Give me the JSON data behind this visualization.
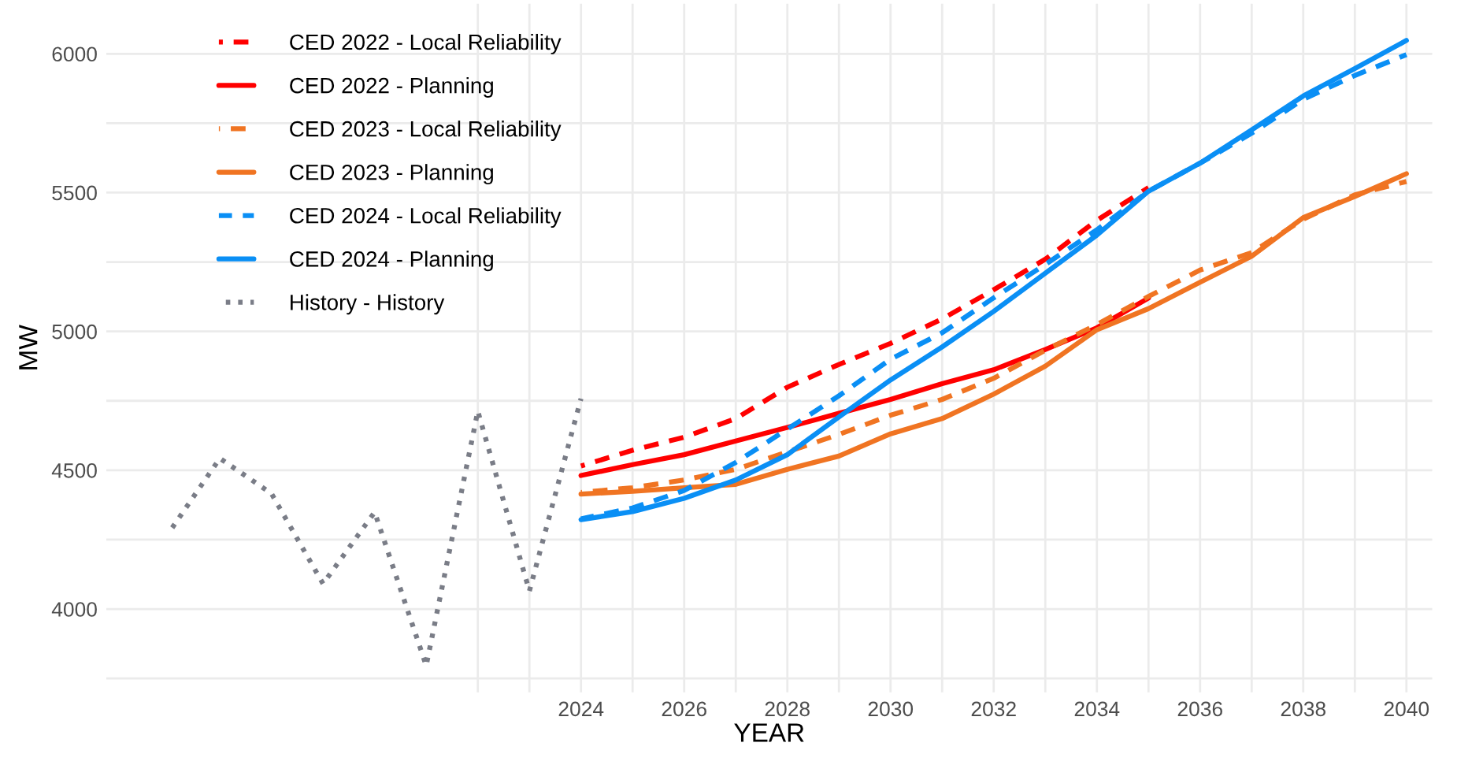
{
  "chart_data": {
    "type": "line",
    "xlabel": "YEAR",
    "ylabel": "MW",
    "xlim": [
      2014.8,
      2040.5
    ],
    "ylim": [
      3700,
      6180
    ],
    "xticks": [
      {
        "value": 2022,
        "label": null
      },
      {
        "value": 2023,
        "label": null
      },
      2024,
      {
        "value": 2025,
        "label": null
      },
      2026,
      {
        "value": 2027,
        "label": null
      },
      2028,
      {
        "value": 2029,
        "label": null
      },
      2030,
      {
        "value": 2031,
        "label": null
      },
      2032,
      {
        "value": 2033,
        "label": null
      },
      2034,
      {
        "value": 2035,
        "label": null
      },
      2036,
      {
        "value": 2037,
        "label": null
      },
      2038,
      {
        "value": 2039,
        "label": null
      },
      2040
    ],
    "yticks": [
      {
        "value": 3750,
        "label": null
      },
      4000,
      {
        "value": 4250,
        "label": null
      },
      4500,
      {
        "value": 4750,
        "label": null
      },
      5000,
      {
        "value": 5250,
        "label": null
      },
      5500,
      {
        "value": 5750,
        "label": null
      },
      6000
    ],
    "grid": true,
    "legend": "top left",
    "series": [
      {
        "name": "CED 2022 - Local Reliability",
        "color": "#ff0000",
        "line_style": "dashed",
        "x": [
          2024,
          2025,
          2026,
          2027,
          2028,
          2029,
          2030,
          2031,
          2032,
          2033,
          2034,
          2035
        ],
        "values": [
          4515,
          4572,
          4619,
          4686,
          4799,
          4881,
          4957,
          5045,
          5150,
          5260,
          5400,
          5518
        ]
      },
      {
        "name": "CED 2022 - Planning",
        "color": "#ff0000",
        "line_style": "solid",
        "x": [
          2024,
          2025,
          2026,
          2027,
          2028,
          2029,
          2030,
          2031,
          2032,
          2033,
          2034,
          2035
        ],
        "values": [
          4481,
          4520,
          4556,
          4605,
          4654,
          4705,
          4755,
          4812,
          4862,
          4935,
          5013,
          5120
        ]
      },
      {
        "name": "CED 2023 - Local Reliability",
        "color": "#f07422",
        "line_style": "dashed",
        "x": [
          2024,
          2025,
          2026,
          2027,
          2028,
          2029,
          2030,
          2031,
          2032,
          2033,
          2034,
          2035,
          2036,
          2037,
          2038,
          2039,
          2040
        ],
        "values": [
          4420,
          4437,
          4465,
          4503,
          4566,
          4629,
          4698,
          4755,
          4831,
          4932,
          5025,
          5126,
          5221,
          5284,
          5404,
          5492,
          5540
        ]
      },
      {
        "name": "CED 2023 - Planning",
        "color": "#f07422",
        "line_style": "solid",
        "x": [
          2024,
          2025,
          2026,
          2027,
          2028,
          2029,
          2030,
          2031,
          2032,
          2033,
          2034,
          2035,
          2036,
          2037,
          2038,
          2039,
          2040
        ],
        "values": [
          4414,
          4424,
          4437,
          4449,
          4503,
          4551,
          4631,
          4686,
          4774,
          4875,
          5006,
          5082,
          5177,
          5271,
          5410,
          5486,
          5568
        ]
      },
      {
        "name": "CED 2024 - Local Reliability",
        "color": "#0a8ff5",
        "line_style": "dashed",
        "x": [
          2024,
          2025,
          2026,
          2027,
          2028,
          2029,
          2030,
          2031,
          2032,
          2033,
          2034,
          2035,
          2036,
          2037,
          2038,
          2039,
          2040
        ],
        "values": [
          4325,
          4364,
          4427,
          4528,
          4648,
          4768,
          4900,
          4995,
          5121,
          5241,
          5366,
          5505,
          5606,
          5714,
          5836,
          5922,
          5997
        ]
      },
      {
        "name": "CED 2024 - Planning",
        "color": "#0a8ff5",
        "line_style": "solid",
        "x": [
          2024,
          2025,
          2026,
          2027,
          2028,
          2029,
          2030,
          2031,
          2032,
          2033,
          2034,
          2035,
          2036,
          2037,
          2038,
          2039,
          2040
        ],
        "values": [
          4322,
          4351,
          4399,
          4465,
          4556,
          4692,
          4825,
          4944,
          5072,
          5210,
          5347,
          5505,
          5606,
          5726,
          5848,
          5947,
          6048
        ]
      },
      {
        "name": "History - History",
        "color": "#7a7d87",
        "line_style": "dotted",
        "x": [
          2016,
          2017,
          2018,
          2019,
          2020,
          2021,
          2022,
          2023,
          2024
        ],
        "values": [
          4272,
          4543,
          4416,
          4091,
          4349,
          3796,
          4713,
          4065,
          4758
        ]
      }
    ]
  }
}
